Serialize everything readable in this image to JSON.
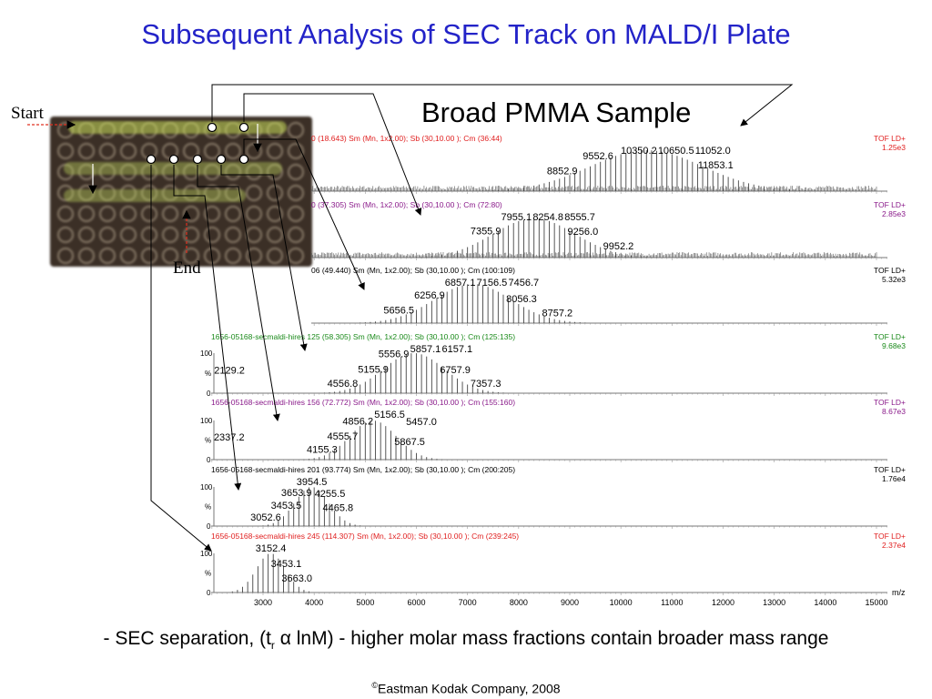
{
  "title": "Subsequent Analysis of SEC Track on MALD/I Plate",
  "subtitle": "Broad PMMA Sample",
  "photo_labels": {
    "start": "Start",
    "end": "End"
  },
  "caption": {
    "pre": "- SEC separation,  (t",
    "sub": "r",
    "alpha": " α ",
    "post": "lnM) - higher molar mass fractions contain broader mass range"
  },
  "copyright": {
    "sym": "©",
    "text": "Eastman Kodak Company, 2008"
  },
  "chart_data": {
    "type": "bar",
    "xlabel": "m/z",
    "xlim": [
      2000,
      15200
    ],
    "xticks": [
      3000,
      4000,
      5000,
      6000,
      7000,
      8000,
      9000,
      10000,
      11000,
      12000,
      13000,
      14000,
      15000
    ],
    "ylabel": "%",
    "yticks": [
      "0",
      "100"
    ],
    "repeat_unit": 100,
    "spectra": [
      {
        "header": "0 (18.643) Sm (Mn, 1x2.00); Sb (30,10.00 ); Cm (36:44)",
        "mode": "TOF LD+",
        "intensity": "1.25e3",
        "color": "#e02020",
        "center": 10500,
        "sigma": 1100,
        "noise": true,
        "labels": [
          8852.9,
          9552.6,
          10350.2,
          10650.5,
          11052.0,
          11853.1
        ]
      },
      {
        "header": "0 (37.305) Sm (Mn, 1x2.00); Sb (30,10.00 ); Cm (72:80)",
        "mode": "TOF LD+",
        "intensity": "2.85e3",
        "color": "#8a1a8a",
        "center": 8300,
        "sigma": 800,
        "noise": true,
        "labels": [
          7355.9,
          7955.1,
          8254.8,
          8555.7,
          9256.0,
          9952.2
        ]
      },
      {
        "header": "06 (49.440) Sm (Mn, 1x2.00); Sb (30,10.00 ); Cm (100:109)",
        "mode": "TOF LD+",
        "intensity": "5.32e3",
        "color": "#000000",
        "center": 7100,
        "sigma": 750,
        "noise": false,
        "labels": [
          5656.5,
          6256.9,
          6857.1,
          7156.5,
          7456.7,
          8056.3,
          8757.2
        ]
      },
      {
        "header": "1656-05168-secmaldi-hires  125 (58.305) Sm (Mn, 1x2.00); Sb (30,10.00 ); Cm (125:135)",
        "mode": "TOF LD+",
        "intensity": "9.68e3",
        "color": "#1a8a1a",
        "center": 5950,
        "sigma": 600,
        "noise": false,
        "labels": [
          2129.2,
          4556.8,
          5155.9,
          5556.9,
          5857.1,
          6157.1,
          6757.9,
          7357.3
        ]
      },
      {
        "header": "1656-05168-secmaldi-hires  156 (72.772) Sm (Mn, 1x2.00); Sb (30,10.00 ); Cm (155:160)",
        "mode": "TOF LD+",
        "intensity": "8.67e3",
        "color": "#8a1a8a",
        "center": 5150,
        "sigma": 450,
        "noise": false,
        "labels": [
          2337.2,
          4155.3,
          4555.7,
          4856.2,
          5156.5,
          5457.0,
          5867.5
        ]
      },
      {
        "header": "1656-05168-secmaldi-hires  201 (93.774) Sm (Mn, 1x2.00); Sb (30,10.00 ); Cm (200:205)",
        "mode": "TOF LD+",
        "intensity": "1.76e4",
        "color": "#000000",
        "center": 3950,
        "sigma": 330,
        "noise": false,
        "labels": [
          3052.6,
          3453.5,
          3653.9,
          3954.5,
          4255.5,
          4465.8
        ]
      },
      {
        "header": "1656-05168-secmaldi-hires  245 (114.307) Sm (Mn, 1x2.00); Sb (30,10.00 ); Cm (239:245)",
        "mode": "TOF LD+",
        "intensity": "2.37e4",
        "color": "#e02020",
        "center": 3150,
        "sigma": 280,
        "noise": false,
        "labels": [
          3152.4,
          3453.1,
          3663.0
        ]
      }
    ]
  }
}
